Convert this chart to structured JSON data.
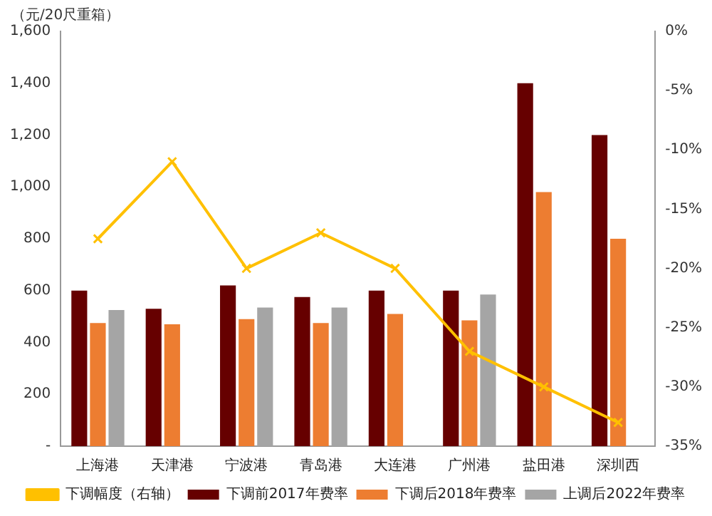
{
  "chart_data": {
    "type": "bar",
    "ylabel": "（元/20尺重箱）",
    "categories": [
      "上海港",
      "天津港",
      "宁波港",
      "青岛港",
      "大连港",
      "广州港",
      "盐田港",
      "深圳西"
    ],
    "series": [
      {
        "name": "下调前2017年费率",
        "color": "#660000",
        "values": [
          600,
          530,
          620,
          575,
          600,
          600,
          1400,
          1200
        ]
      },
      {
        "name": "下调后2018年费率",
        "color": "#ed7d31",
        "values": [
          475,
          470,
          490,
          475,
          510,
          485,
          980,
          800
        ]
      },
      {
        "name": "上调后2022年费率",
        "color": "#a5a5a5",
        "values": [
          525,
          null,
          535,
          535,
          null,
          585,
          null,
          null
        ]
      },
      {
        "name": "下调幅度（右轴）",
        "type": "line",
        "axis": "y2",
        "color": "#ffc000",
        "marker": "cross",
        "values": [
          -17.5,
          -11,
          -20,
          -17,
          -20,
          -27,
          -30,
          -33
        ]
      }
    ],
    "ylim": [
      0,
      1600
    ],
    "yticks": [
      {
        "value": 0,
        "label": "-"
      },
      {
        "value": 200,
        "label": "200"
      },
      {
        "value": 400,
        "label": "400"
      },
      {
        "value": 600,
        "label": "600"
      },
      {
        "value": 800,
        "label": "800"
      },
      {
        "value": 1000,
        "label": "1,000"
      },
      {
        "value": 1200,
        "label": "1,200"
      },
      {
        "value": 1400,
        "label": "1,400"
      },
      {
        "value": 1600,
        "label": "1,600"
      }
    ],
    "y2lim": [
      -35,
      0
    ],
    "y2ticks": [
      {
        "value": 0,
        "label": "0%"
      },
      {
        "value": -5,
        "label": "-5%"
      },
      {
        "value": -10,
        "label": "-10%"
      },
      {
        "value": -15,
        "label": "-15%"
      },
      {
        "value": -20,
        "label": "-20%"
      },
      {
        "value": -25,
        "label": "-25%"
      },
      {
        "value": -30,
        "label": "-30%"
      },
      {
        "value": -35,
        "label": "-35%"
      }
    ],
    "grid": false,
    "legend": "bottom"
  }
}
